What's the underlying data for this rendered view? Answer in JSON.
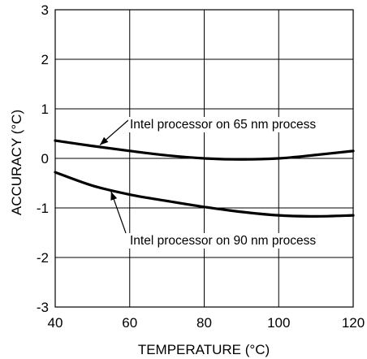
{
  "chart_data": {
    "type": "line",
    "title": "",
    "xlabel": "TEMPERATURE (°C)",
    "ylabel": "ACCURACY (°C)",
    "xlim": [
      40,
      120
    ],
    "ylim": [
      -3,
      3
    ],
    "x_ticks": [
      "40",
      "60",
      "80",
      "100",
      "120"
    ],
    "y_ticks": [
      "3",
      "2",
      "1",
      "0",
      "-1",
      "-2",
      "-3"
    ],
    "grid": true,
    "legend": "none",
    "series": [
      {
        "name": "Intel processor on 65 nm process",
        "x": [
          40,
          50,
          60,
          70,
          80,
          90,
          100,
          110,
          120
        ],
        "y": [
          0.36,
          0.25,
          0.15,
          0.06,
          0.0,
          -0.02,
          0.0,
          0.07,
          0.15
        ]
      },
      {
        "name": "Intel processor on 90 nm process",
        "x": [
          40,
          50,
          60,
          70,
          80,
          90,
          100,
          110,
          120
        ],
        "y": [
          -0.28,
          -0.55,
          -0.73,
          -0.86,
          -0.98,
          -1.08,
          -1.15,
          -1.17,
          -1.15
        ]
      }
    ],
    "annotations": [
      {
        "text": "Intel processor on 65 nm process",
        "x": 52,
        "y": 0.27
      },
      {
        "text": "Intel processor on 90 nm process",
        "x": 55,
        "y": -0.67
      }
    ],
    "colors": {
      "line": "#000000",
      "grid": "#000000",
      "background": "#ffffff"
    }
  }
}
